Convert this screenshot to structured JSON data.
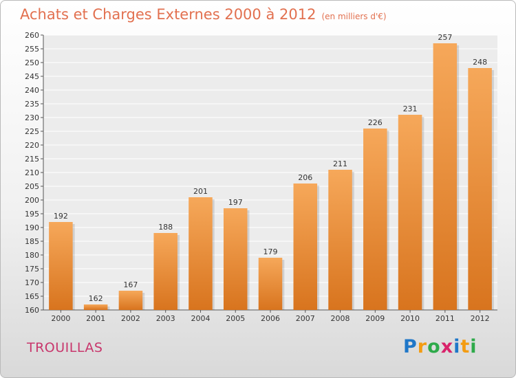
{
  "title": "Achats et Charges Externes 2000 à 2012",
  "subtitle": "(en milliers d'€)",
  "location": "TROUILLAS",
  "logo": {
    "letters": [
      "P",
      "r",
      "o",
      "x",
      "i",
      "t",
      "i"
    ],
    "colors": [
      "#1f77c8",
      "#f39c12",
      "#2eaa4a",
      "#d9236b",
      "#1f77c8",
      "#f39c12",
      "#2eaa4a"
    ]
  },
  "colors": {
    "bar_top": "#f6a85a",
    "bar_bottom": "#d8741e",
    "title": "#e2704f",
    "location": "#c8366c"
  },
  "chart_data": {
    "type": "bar",
    "categories": [
      "2000",
      "2001",
      "2002",
      "2003",
      "2004",
      "2005",
      "2006",
      "2007",
      "2008",
      "2009",
      "2010",
      "2011",
      "2012"
    ],
    "values": [
      192,
      162,
      167,
      188,
      201,
      197,
      179,
      206,
      211,
      226,
      231,
      257,
      248
    ],
    "title": "Achats et Charges Externes 2000 à 2012",
    "ylim": [
      160,
      260
    ],
    "yticks": [
      160,
      165,
      170,
      175,
      180,
      185,
      190,
      195,
      200,
      205,
      210,
      215,
      220,
      225,
      230,
      235,
      240,
      245,
      250,
      255,
      260
    ],
    "grid": true,
    "legend": "none"
  }
}
